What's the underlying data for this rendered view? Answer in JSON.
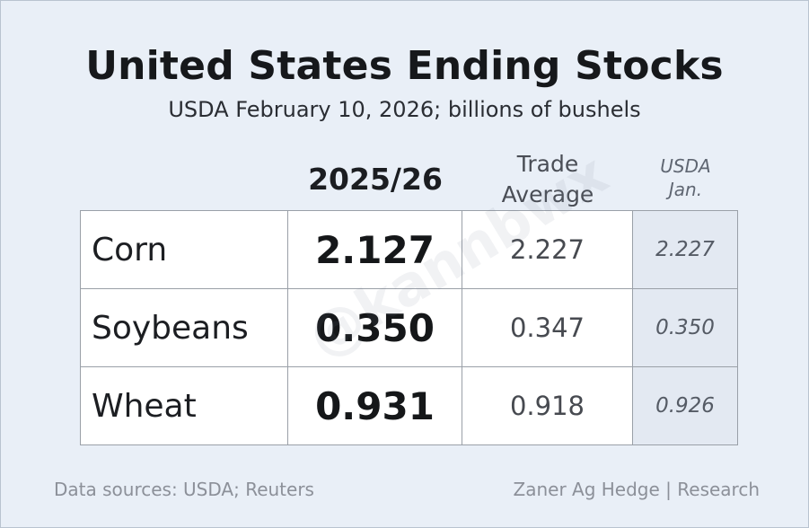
{
  "title": "United States Ending Stocks",
  "subtitle": "USDA February 10, 2026; billions of bushels",
  "columns": {
    "main": "2025/26",
    "trade_line1": "Trade",
    "trade_line2": "Average",
    "usda_line1": "USDA",
    "usda_line2": "Jan."
  },
  "rows": [
    {
      "label": "Corn",
      "value": "2.127",
      "trade": "2.227",
      "usda_jan": "2.227"
    },
    {
      "label": "Soybeans",
      "value": "0.350",
      "trade": "0.347",
      "usda_jan": "0.350"
    },
    {
      "label": "Wheat",
      "value": "0.931",
      "trade": "0.918",
      "usda_jan": "0.926"
    }
  ],
  "watermark": "@kannbwx",
  "footer": {
    "sources": "Data sources: USDA; Reuters",
    "credit": "Zaner Ag Hedge | Research"
  },
  "colors": {
    "background": "#e9eff7",
    "usda_column_fill": "#e3e9f2"
  }
}
